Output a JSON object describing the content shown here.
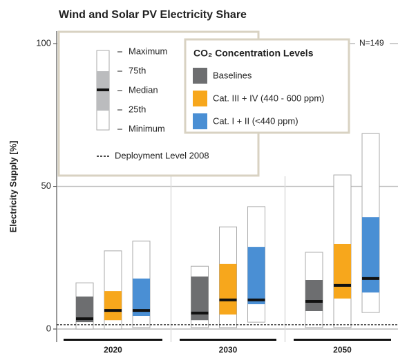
{
  "chart_data": {
    "type": "box",
    "title": "Wind and Solar PV Electricity Share",
    "y_label": "Electricity Supply [%]",
    "annotation": "N=149",
    "categories": [
      "2020",
      "2030",
      "2050"
    ],
    "ylim": [
      -4.6,
      104.4
    ],
    "yticks": [
      0,
      50,
      100
    ],
    "grid": true,
    "legend_title": "CO₂ Concentration Levels",
    "box_legend": [
      "Maximum",
      "75th",
      "Median",
      "25th",
      "Minimum"
    ],
    "reference_line": {
      "label": "Deployment Level 2008",
      "value": 1.5
    },
    "series": [
      {
        "name": "Baselines",
        "color": "#6d6e70",
        "values": [
          {
            "min": 0,
            "q1": 2.4,
            "median": 3.6,
            "q3": 11.4,
            "max": 16.2
          },
          {
            "min": 0.5,
            "q1": 3.1,
            "median": 5.6,
            "q3": 18.4,
            "max": 22.0
          },
          {
            "min": 0.5,
            "q1": 6.3,
            "median": 9.7,
            "q3": 17.2,
            "max": 26.9
          }
        ]
      },
      {
        "name": "Cat. III + IV (440 - 600 ppm)",
        "color": "#f7a71c",
        "values": [
          {
            "min": 0,
            "q1": 3.1,
            "median": 6.5,
            "q3": 13.3,
            "max": 27.4
          },
          {
            "min": 0.5,
            "q1": 5.1,
            "median": 10.2,
            "q3": 22.8,
            "max": 35.8
          },
          {
            "min": 0.5,
            "q1": 10.7,
            "median": 15.3,
            "q3": 29.8,
            "max": 54.0
          }
        ]
      },
      {
        "name": "Cat. I + II (<440 ppm)",
        "color": "#4a8fd4",
        "values": [
          {
            "min": 0.5,
            "q1": 4.6,
            "median": 6.5,
            "q3": 17.7,
            "max": 30.8
          },
          {
            "min": 2.4,
            "q1": 8.7,
            "median": 10.2,
            "q3": 28.8,
            "max": 42.9
          },
          {
            "min": 5.8,
            "q1": 12.8,
            "median": 17.7,
            "q3": 39.2,
            "max": 68.5
          }
        ]
      }
    ]
  }
}
